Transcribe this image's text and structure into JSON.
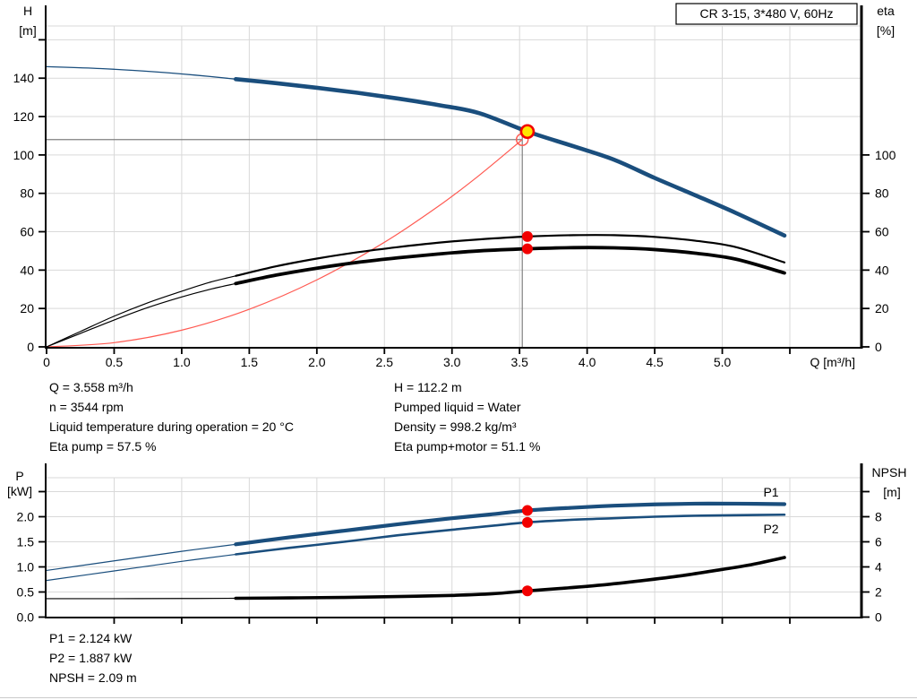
{
  "title_box": {
    "label": "CR 3-15, 3*480 V, 60Hz"
  },
  "colors": {
    "blue": "#1a4e7d",
    "label_blue": "#2161a5",
    "red": "#f20000",
    "red_line": "#ff5a52",
    "yellow": "#ffe600",
    "grid": "#d9d9d9",
    "guide": "#7f7f7f",
    "black": "#000000",
    "axis": "#000000"
  },
  "info_top": {
    "left": [
      "Q = 3.558 m³/h",
      "n = 3544 rpm",
      "Liquid temperature during operation = 20 °C",
      "Eta pump = 57.5 %"
    ],
    "right": [
      "H = 112.2 m",
      "Pumped liquid = Water",
      "Density = 998.2 kg/m³",
      "Eta pump+motor = 51.1 %"
    ]
  },
  "info_bottom": [
    "P1 = 2.124 kW",
    "P2 = 1.887 kW",
    "NPSH = 2.09 m"
  ],
  "chart_data": [
    {
      "id": "head-flow-chart",
      "type": "line",
      "title": "CR 3-15, 3*480 V, 60Hz",
      "xlabel": "Q [m³/h]",
      "y_left_label": [
        "H",
        "[m]"
      ],
      "y_right_label": [
        "eta",
        "[%]"
      ],
      "xlim": [
        0,
        6.03
      ],
      "ylim_left": [
        0,
        177
      ],
      "ylim_right": [
        0,
        177
      ],
      "grid": true,
      "x_ticks": {
        "values": [
          0,
          0.5,
          1,
          1.5,
          2,
          2.5,
          3,
          3.5,
          4,
          4.5,
          5,
          5.5
        ],
        "labels": [
          "0",
          "0.5",
          "1.0",
          "1.5",
          "2.0",
          "2.5",
          "3.0",
          "3.5",
          "4.0",
          "4.5",
          "5.0",
          ""
        ]
      },
      "left_ticks": {
        "values": [
          0,
          20,
          40,
          60,
          80,
          100,
          120,
          140,
          160
        ],
        "labels": [
          "0",
          "20",
          "40",
          "60",
          "80",
          "100",
          "120",
          "140",
          ""
        ]
      },
      "right_ticks": {
        "values": [
          0,
          20,
          40,
          60,
          80,
          100
        ],
        "labels": [
          "0",
          "20",
          "40",
          "60",
          "80",
          "100"
        ]
      },
      "guides": {
        "h_value": 108,
        "v_q": 3.52,
        "v_top_value": 112.2
      },
      "series": [
        {
          "name": "System curve",
          "axis": "left",
          "color": "red_line",
          "w_thin": 1.2,
          "w_thick": 1.2,
          "split": null,
          "points": [
            [
              0,
              0
            ],
            [
              0.5,
              2.2
            ],
            [
              1.0,
              8.7
            ],
            [
              1.5,
              19.6
            ],
            [
              2.0,
              34.9
            ],
            [
              2.5,
              54.5
            ],
            [
              2.9,
              73.3
            ],
            [
              3.2,
              89.3
            ],
            [
              3.52,
              108
            ]
          ]
        },
        {
          "name": "Eta pump+motor",
          "axis": "right",
          "color": "black",
          "w_thin": 1.2,
          "w_thick": 3.8,
          "split": 1.4,
          "points": [
            [
              0,
              0
            ],
            [
              0.25,
              7
            ],
            [
              0.5,
              14
            ],
            [
              0.75,
              20.5
            ],
            [
              1.0,
              26
            ],
            [
              1.2,
              29.8
            ],
            [
              1.4,
              33
            ],
            [
              1.7,
              37.4
            ],
            [
              2.0,
              41
            ],
            [
              2.3,
              44
            ],
            [
              2.6,
              46.4
            ],
            [
              2.9,
              48.4
            ],
            [
              3.2,
              50
            ],
            [
              3.558,
              51.1
            ],
            [
              3.9,
              51.7
            ],
            [
              4.2,
              51.6
            ],
            [
              4.5,
              50.7
            ],
            [
              4.8,
              48.8
            ],
            [
              5.1,
              45.7
            ],
            [
              5.46,
              38.5
            ]
          ]
        },
        {
          "name": "Eta pump",
          "axis": "right",
          "color": "black",
          "w_thin": 1.2,
          "w_thick": 2.2,
          "split": 1.4,
          "points": [
            [
              0,
              0
            ],
            [
              0.25,
              8
            ],
            [
              0.5,
              16
            ],
            [
              0.75,
              23
            ],
            [
              1.0,
              29
            ],
            [
              1.2,
              33.5
            ],
            [
              1.4,
              37
            ],
            [
              1.7,
              42
            ],
            [
              2.0,
              46
            ],
            [
              2.3,
              49.3
            ],
            [
              2.6,
              52
            ],
            [
              2.9,
              54.3
            ],
            [
              3.2,
              56
            ],
            [
              3.558,
              57.5
            ],
            [
              3.9,
              58.2
            ],
            [
              4.2,
              58.2
            ],
            [
              4.5,
              57.3
            ],
            [
              4.8,
              55.3
            ],
            [
              5.1,
              52
            ],
            [
              5.46,
              44
            ]
          ]
        },
        {
          "name": "H",
          "axis": "left",
          "color": "blue",
          "w_thin": 1.3,
          "w_thick": 4.6,
          "split": 1.4,
          "points": [
            [
              0,
              146
            ],
            [
              0.4,
              145
            ],
            [
              0.8,
              143.3
            ],
            [
              1.1,
              141.6
            ],
            [
              1.4,
              139.5
            ],
            [
              1.7,
              137.4
            ],
            [
              2.0,
              135
            ],
            [
              2.3,
              132.4
            ],
            [
              2.6,
              129.4
            ],
            [
              2.9,
              126
            ],
            [
              3.2,
              121.8
            ],
            [
              3.558,
              112.2
            ],
            [
              3.9,
              104.5
            ],
            [
              4.2,
              97.5
            ],
            [
              4.5,
              88
            ],
            [
              4.8,
              79
            ],
            [
              5.1,
              69.8
            ],
            [
              5.46,
              58
            ]
          ]
        }
      ],
      "markers": [
        {
          "shape": "circle-open",
          "q": 3.52,
          "v": 108,
          "axis": "left",
          "label": "duty-point"
        },
        {
          "shape": "dot",
          "q": 3.558,
          "v": 57.5,
          "axis": "right",
          "label": "eta-pump-point"
        },
        {
          "shape": "dot",
          "q": 3.558,
          "v": 51.1,
          "axis": "right",
          "label": "eta-pump-motor-point"
        },
        {
          "shape": "op",
          "q": 3.558,
          "v": 112.2,
          "axis": "left",
          "label": "operating-point"
        }
      ]
    },
    {
      "id": "power-npsh-chart",
      "type": "line",
      "title": "",
      "xlabel": "",
      "y_left_label": [
        "P",
        "[kW]"
      ],
      "y_right_label": [
        "NPSH",
        "[m]"
      ],
      "xlim": [
        0,
        6.03
      ],
      "ylim_left": [
        0,
        3.05
      ],
      "ylim_right": [
        0,
        12.2
      ],
      "grid": true,
      "x_ticks": {
        "values": [
          0.5,
          1,
          1.5,
          2,
          2.5,
          3,
          3.5,
          4,
          4.5,
          5,
          5.5
        ],
        "labels": [
          "",
          "",
          "",
          "",
          "",
          "",
          "",
          "",
          "",
          "",
          ""
        ]
      },
      "left_ticks": {
        "values": [
          0,
          0.5,
          1,
          1.5,
          2,
          2.5
        ],
        "labels": [
          "0.0",
          "0.5",
          "1.0",
          "1.5",
          "2.0",
          ""
        ]
      },
      "right_ticks": {
        "values": [
          0,
          2,
          4,
          6,
          8,
          10
        ],
        "labels": [
          "0",
          "2",
          "4",
          "6",
          "8",
          ""
        ]
      },
      "guides": null,
      "series": [
        {
          "name": "NPSH",
          "axis": "right",
          "color": "black",
          "w_thin": 1.2,
          "w_thick": 3.6,
          "split": 1.4,
          "points": [
            [
              0,
              1.47
            ],
            [
              0.5,
              1.47
            ],
            [
              1.0,
              1.48
            ],
            [
              1.4,
              1.5
            ],
            [
              1.8,
              1.53
            ],
            [
              2.2,
              1.57
            ],
            [
              2.6,
              1.64
            ],
            [
              3.0,
              1.73
            ],
            [
              3.3,
              1.86
            ],
            [
              3.558,
              2.09
            ],
            [
              3.8,
              2.28
            ],
            [
              4.1,
              2.55
            ],
            [
              4.4,
              2.9
            ],
            [
              4.7,
              3.3
            ],
            [
              5.0,
              3.8
            ],
            [
              5.2,
              4.15
            ],
            [
              5.46,
              4.75
            ]
          ]
        },
        {
          "name": "P2",
          "axis": "left",
          "color": "blue",
          "w_thin": 1.2,
          "w_thick": 2.6,
          "split": 1.4,
          "points": [
            [
              0,
              0.73
            ],
            [
              0.5,
              0.92
            ],
            [
              1.0,
              1.11
            ],
            [
              1.4,
              1.25
            ],
            [
              1.8,
              1.38
            ],
            [
              2.2,
              1.5
            ],
            [
              2.6,
              1.63
            ],
            [
              3.0,
              1.74
            ],
            [
              3.3,
              1.82
            ],
            [
              3.558,
              1.887
            ],
            [
              3.9,
              1.94
            ],
            [
              4.2,
              1.97
            ],
            [
              4.5,
              2.0
            ],
            [
              4.8,
              2.02
            ],
            [
              5.1,
              2.03
            ],
            [
              5.46,
              2.04
            ]
          ]
        },
        {
          "name": "P1",
          "axis": "left",
          "color": "blue",
          "w_thin": 1.2,
          "w_thick": 4.2,
          "split": 1.4,
          "points": [
            [
              0,
              0.93
            ],
            [
              0.5,
              1.12
            ],
            [
              1.0,
              1.31
            ],
            [
              1.4,
              1.45
            ],
            [
              1.8,
              1.59
            ],
            [
              2.2,
              1.72
            ],
            [
              2.6,
              1.85
            ],
            [
              3.0,
              1.97
            ],
            [
              3.3,
              2.05
            ],
            [
              3.558,
              2.124
            ],
            [
              3.9,
              2.18
            ],
            [
              4.2,
              2.22
            ],
            [
              4.5,
              2.245
            ],
            [
              4.8,
              2.26
            ],
            [
              5.1,
              2.26
            ],
            [
              5.46,
              2.25
            ]
          ]
        }
      ],
      "markers": [
        {
          "shape": "dot",
          "q": 3.558,
          "v": 2.124,
          "axis": "left",
          "label": "p1-point"
        },
        {
          "shape": "dot",
          "q": 3.558,
          "v": 1.887,
          "axis": "left",
          "label": "p2-point"
        },
        {
          "shape": "dot",
          "q": 3.558,
          "v": 2.09,
          "axis": "right",
          "label": "npsh-point"
        }
      ]
    }
  ]
}
